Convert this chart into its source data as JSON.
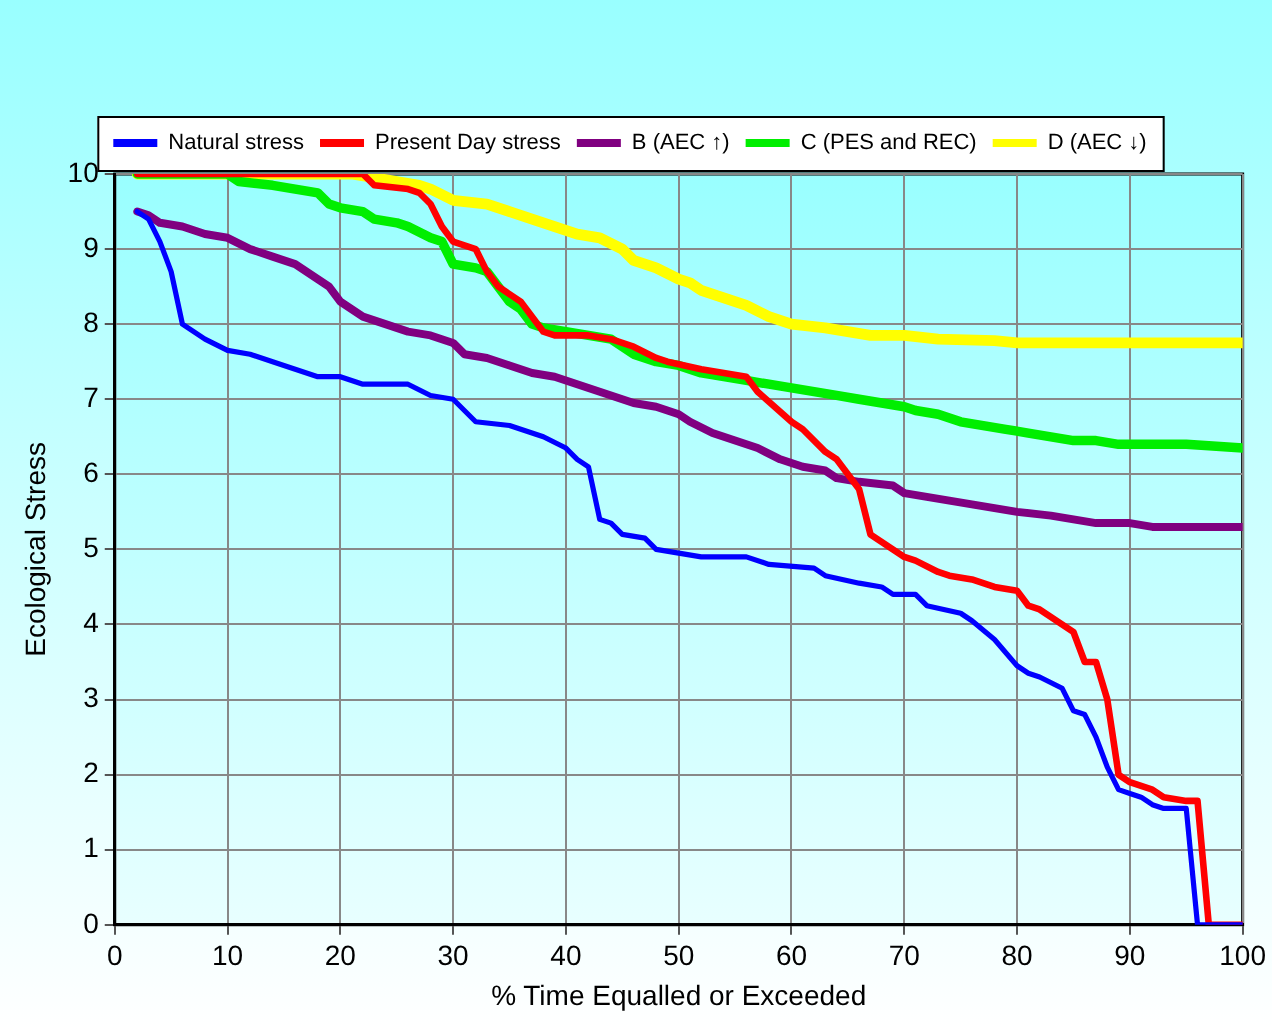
{
  "chart_data": {
    "type": "line",
    "xlabel": "% Time Equalled or Exceeded",
    "ylabel": "Ecological Stress",
    "xlim": [
      0,
      100
    ],
    "xticks": [
      0,
      10,
      20,
      30,
      40,
      50,
      60,
      70,
      80,
      90,
      100
    ],
    "ylim": [
      0,
      10
    ],
    "yticks": [
      0,
      1,
      2,
      3,
      4,
      5,
      6,
      7,
      8,
      9,
      10
    ],
    "grid": true,
    "legend": "top",
    "marker": "none",
    "line_style": "solid",
    "series": [
      {
        "name": "Natural stress",
        "color": "#0000ff",
        "x": [
          2,
          3,
          4,
          5,
          6,
          7,
          8,
          10,
          12,
          14,
          16,
          18,
          20,
          22,
          26,
          28,
          30,
          31,
          32,
          35,
          38,
          40,
          41,
          42,
          43,
          44,
          45,
          47,
          48,
          50,
          52,
          56,
          58,
          62,
          63,
          66,
          68,
          69,
          71,
          72,
          75,
          76,
          78,
          80,
          81,
          82,
          84,
          85,
          86,
          87,
          88,
          89,
          90,
          91,
          92,
          93,
          95,
          96,
          100
        ],
        "values": [
          9.5,
          9.4,
          9.1,
          8.7,
          8.0,
          7.9,
          7.8,
          7.65,
          7.6,
          7.5,
          7.4,
          7.3,
          7.3,
          7.2,
          7.2,
          7.05,
          7.0,
          6.85,
          6.7,
          6.65,
          6.5,
          6.35,
          6.2,
          6.1,
          5.4,
          5.35,
          5.2,
          5.15,
          5.0,
          4.95,
          4.9,
          4.9,
          4.8,
          4.75,
          4.65,
          4.55,
          4.5,
          4.4,
          4.4,
          4.25,
          4.15,
          4.05,
          3.8,
          3.45,
          3.35,
          3.3,
          3.15,
          2.85,
          2.8,
          2.5,
          2.1,
          1.8,
          1.75,
          1.7,
          1.6,
          1.55,
          1.55,
          0,
          0
        ]
      },
      {
        "name": "Present Day stress",
        "color": "#ff0000",
        "x": [
          2,
          22,
          23,
          26,
          27,
          28,
          29,
          30,
          32,
          33,
          34,
          36,
          37,
          38,
          39,
          42,
          44,
          46,
          48,
          49,
          52,
          54,
          56,
          57,
          60,
          61,
          63,
          64,
          66,
          67,
          69,
          70,
          71,
          73,
          74,
          76,
          78,
          80,
          81,
          82,
          83,
          85,
          86,
          87,
          88,
          89,
          90,
          91,
          92,
          93,
          95,
          96,
          97,
          100
        ],
        "values": [
          10,
          10,
          9.85,
          9.8,
          9.75,
          9.6,
          9.3,
          9.1,
          9.0,
          8.7,
          8.5,
          8.3,
          8.1,
          7.9,
          7.85,
          7.85,
          7.8,
          7.7,
          7.55,
          7.5,
          7.4,
          7.35,
          7.3,
          7.1,
          6.7,
          6.6,
          6.3,
          6.2,
          5.8,
          5.2,
          5.0,
          4.9,
          4.85,
          4.7,
          4.65,
          4.6,
          4.5,
          4.45,
          4.25,
          4.2,
          4.1,
          3.9,
          3.5,
          3.5,
          3.0,
          2.0,
          1.9,
          1.85,
          1.8,
          1.7,
          1.65,
          1.65,
          0,
          0
        ]
      },
      {
        "name": "B (AEC ↑)",
        "color": "#800080",
        "x": [
          2,
          3,
          4,
          6,
          8,
          10,
          12,
          14,
          16,
          18,
          19,
          20,
          21,
          22,
          24,
          26,
          28,
          30,
          31,
          33,
          35,
          37,
          39,
          41,
          43,
          44,
          46,
          48,
          50,
          51,
          53,
          55,
          57,
          59,
          61,
          63,
          64,
          66,
          69,
          70,
          72,
          74,
          76,
          78,
          80,
          83,
          85,
          87,
          90,
          92,
          100
        ],
        "values": [
          9.5,
          9.45,
          9.35,
          9.3,
          9.2,
          9.15,
          9.0,
          8.9,
          8.8,
          8.6,
          8.5,
          8.3,
          8.2,
          8.1,
          8.0,
          7.9,
          7.85,
          7.75,
          7.6,
          7.55,
          7.45,
          7.35,
          7.3,
          7.2,
          7.1,
          7.05,
          6.95,
          6.9,
          6.8,
          6.7,
          6.55,
          6.45,
          6.35,
          6.2,
          6.1,
          6.05,
          5.95,
          5.9,
          5.85,
          5.75,
          5.7,
          5.65,
          5.6,
          5.55,
          5.5,
          5.45,
          5.4,
          5.35,
          5.35,
          5.3,
          5.3
        ]
      },
      {
        "name": "C (PES and REC)",
        "color": "#00ee00",
        "x": [
          2,
          10,
          11,
          14,
          16,
          18,
          19,
          20,
          22,
          23,
          25,
          26,
          28,
          29,
          30,
          32,
          33,
          34,
          35,
          36,
          37,
          38,
          40,
          42,
          44,
          46,
          48,
          50,
          52,
          54,
          56,
          58,
          60,
          62,
          64,
          66,
          68,
          70,
          71,
          73,
          75,
          77,
          79,
          81,
          83,
          85,
          87,
          89,
          91,
          95,
          100
        ],
        "values": [
          10,
          10,
          9.9,
          9.85,
          9.8,
          9.75,
          9.6,
          9.55,
          9.5,
          9.4,
          9.35,
          9.3,
          9.15,
          9.1,
          8.8,
          8.75,
          8.7,
          8.5,
          8.3,
          8.2,
          8.0,
          7.95,
          7.9,
          7.85,
          7.8,
          7.6,
          7.5,
          7.45,
          7.35,
          7.3,
          7.25,
          7.2,
          7.15,
          7.1,
          7.05,
          7.0,
          6.95,
          6.9,
          6.85,
          6.8,
          6.7,
          6.65,
          6.6,
          6.55,
          6.5,
          6.45,
          6.45,
          6.4,
          6.4,
          6.4,
          6.35
        ]
      },
      {
        "name": "D (AEC ↓)",
        "color": "#ffff00",
        "x": [
          2,
          21,
          23,
          25,
          27,
          28,
          30,
          33,
          35,
          37,
          39,
          41,
          43,
          45,
          46,
          48,
          50,
          51,
          52,
          54,
          56,
          58,
          60,
          63,
          65,
          67,
          70,
          73,
          78,
          80,
          100
        ],
        "values": [
          10,
          10,
          9.95,
          9.9,
          9.85,
          9.8,
          9.65,
          9.6,
          9.5,
          9.4,
          9.3,
          9.2,
          9.15,
          9.0,
          8.85,
          8.75,
          8.6,
          8.55,
          8.45,
          8.35,
          8.25,
          8.1,
          8.0,
          7.95,
          7.9,
          7.85,
          7.85,
          7.8,
          7.78,
          7.75,
          7.75
        ]
      }
    ]
  }
}
